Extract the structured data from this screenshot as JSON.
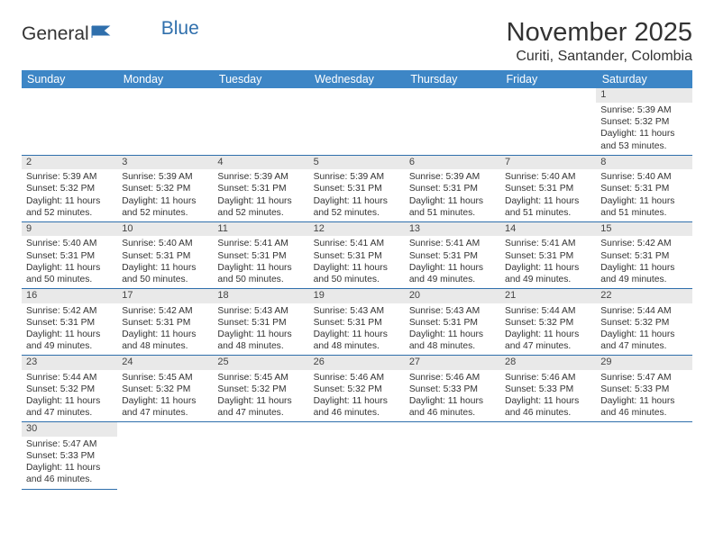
{
  "logo": {
    "text1": "General",
    "text2": "Blue"
  },
  "header": {
    "title": "November 2025",
    "location": "Curiti, Santander, Colombia"
  },
  "colors": {
    "header_bg": "#3d86c6",
    "header_fg": "#ffffff",
    "daynum_bg": "#e9e9e9",
    "rule": "#2f6fac",
    "logo_blue": "#2f6fac",
    "text": "#333333"
  },
  "day_headers": [
    "Sunday",
    "Monday",
    "Tuesday",
    "Wednesday",
    "Thursday",
    "Friday",
    "Saturday"
  ],
  "weeks": [
    [
      null,
      null,
      null,
      null,
      null,
      null,
      {
        "n": "1",
        "sr": "Sunrise: 5:39 AM",
        "ss": "Sunset: 5:32 PM",
        "dl": "Daylight: 11 hours and 53 minutes."
      }
    ],
    [
      {
        "n": "2",
        "sr": "Sunrise: 5:39 AM",
        "ss": "Sunset: 5:32 PM",
        "dl": "Daylight: 11 hours and 52 minutes."
      },
      {
        "n": "3",
        "sr": "Sunrise: 5:39 AM",
        "ss": "Sunset: 5:32 PM",
        "dl": "Daylight: 11 hours and 52 minutes."
      },
      {
        "n": "4",
        "sr": "Sunrise: 5:39 AM",
        "ss": "Sunset: 5:31 PM",
        "dl": "Daylight: 11 hours and 52 minutes."
      },
      {
        "n": "5",
        "sr": "Sunrise: 5:39 AM",
        "ss": "Sunset: 5:31 PM",
        "dl": "Daylight: 11 hours and 52 minutes."
      },
      {
        "n": "6",
        "sr": "Sunrise: 5:39 AM",
        "ss": "Sunset: 5:31 PM",
        "dl": "Daylight: 11 hours and 51 minutes."
      },
      {
        "n": "7",
        "sr": "Sunrise: 5:40 AM",
        "ss": "Sunset: 5:31 PM",
        "dl": "Daylight: 11 hours and 51 minutes."
      },
      {
        "n": "8",
        "sr": "Sunrise: 5:40 AM",
        "ss": "Sunset: 5:31 PM",
        "dl": "Daylight: 11 hours and 51 minutes."
      }
    ],
    [
      {
        "n": "9",
        "sr": "Sunrise: 5:40 AM",
        "ss": "Sunset: 5:31 PM",
        "dl": "Daylight: 11 hours and 50 minutes."
      },
      {
        "n": "10",
        "sr": "Sunrise: 5:40 AM",
        "ss": "Sunset: 5:31 PM",
        "dl": "Daylight: 11 hours and 50 minutes."
      },
      {
        "n": "11",
        "sr": "Sunrise: 5:41 AM",
        "ss": "Sunset: 5:31 PM",
        "dl": "Daylight: 11 hours and 50 minutes."
      },
      {
        "n": "12",
        "sr": "Sunrise: 5:41 AM",
        "ss": "Sunset: 5:31 PM",
        "dl": "Daylight: 11 hours and 50 minutes."
      },
      {
        "n": "13",
        "sr": "Sunrise: 5:41 AM",
        "ss": "Sunset: 5:31 PM",
        "dl": "Daylight: 11 hours and 49 minutes."
      },
      {
        "n": "14",
        "sr": "Sunrise: 5:41 AM",
        "ss": "Sunset: 5:31 PM",
        "dl": "Daylight: 11 hours and 49 minutes."
      },
      {
        "n": "15",
        "sr": "Sunrise: 5:42 AM",
        "ss": "Sunset: 5:31 PM",
        "dl": "Daylight: 11 hours and 49 minutes."
      }
    ],
    [
      {
        "n": "16",
        "sr": "Sunrise: 5:42 AM",
        "ss": "Sunset: 5:31 PM",
        "dl": "Daylight: 11 hours and 49 minutes."
      },
      {
        "n": "17",
        "sr": "Sunrise: 5:42 AM",
        "ss": "Sunset: 5:31 PM",
        "dl": "Daylight: 11 hours and 48 minutes."
      },
      {
        "n": "18",
        "sr": "Sunrise: 5:43 AM",
        "ss": "Sunset: 5:31 PM",
        "dl": "Daylight: 11 hours and 48 minutes."
      },
      {
        "n": "19",
        "sr": "Sunrise: 5:43 AM",
        "ss": "Sunset: 5:31 PM",
        "dl": "Daylight: 11 hours and 48 minutes."
      },
      {
        "n": "20",
        "sr": "Sunrise: 5:43 AM",
        "ss": "Sunset: 5:31 PM",
        "dl": "Daylight: 11 hours and 48 minutes."
      },
      {
        "n": "21",
        "sr": "Sunrise: 5:44 AM",
        "ss": "Sunset: 5:32 PM",
        "dl": "Daylight: 11 hours and 47 minutes."
      },
      {
        "n": "22",
        "sr": "Sunrise: 5:44 AM",
        "ss": "Sunset: 5:32 PM",
        "dl": "Daylight: 11 hours and 47 minutes."
      }
    ],
    [
      {
        "n": "23",
        "sr": "Sunrise: 5:44 AM",
        "ss": "Sunset: 5:32 PM",
        "dl": "Daylight: 11 hours and 47 minutes."
      },
      {
        "n": "24",
        "sr": "Sunrise: 5:45 AM",
        "ss": "Sunset: 5:32 PM",
        "dl": "Daylight: 11 hours and 47 minutes."
      },
      {
        "n": "25",
        "sr": "Sunrise: 5:45 AM",
        "ss": "Sunset: 5:32 PM",
        "dl": "Daylight: 11 hours and 47 minutes."
      },
      {
        "n": "26",
        "sr": "Sunrise: 5:46 AM",
        "ss": "Sunset: 5:32 PM",
        "dl": "Daylight: 11 hours and 46 minutes."
      },
      {
        "n": "27",
        "sr": "Sunrise: 5:46 AM",
        "ss": "Sunset: 5:33 PM",
        "dl": "Daylight: 11 hours and 46 minutes."
      },
      {
        "n": "28",
        "sr": "Sunrise: 5:46 AM",
        "ss": "Sunset: 5:33 PM",
        "dl": "Daylight: 11 hours and 46 minutes."
      },
      {
        "n": "29",
        "sr": "Sunrise: 5:47 AM",
        "ss": "Sunset: 5:33 PM",
        "dl": "Daylight: 11 hours and 46 minutes."
      }
    ],
    [
      {
        "n": "30",
        "sr": "Sunrise: 5:47 AM",
        "ss": "Sunset: 5:33 PM",
        "dl": "Daylight: 11 hours and 46 minutes."
      },
      null,
      null,
      null,
      null,
      null,
      null
    ]
  ]
}
